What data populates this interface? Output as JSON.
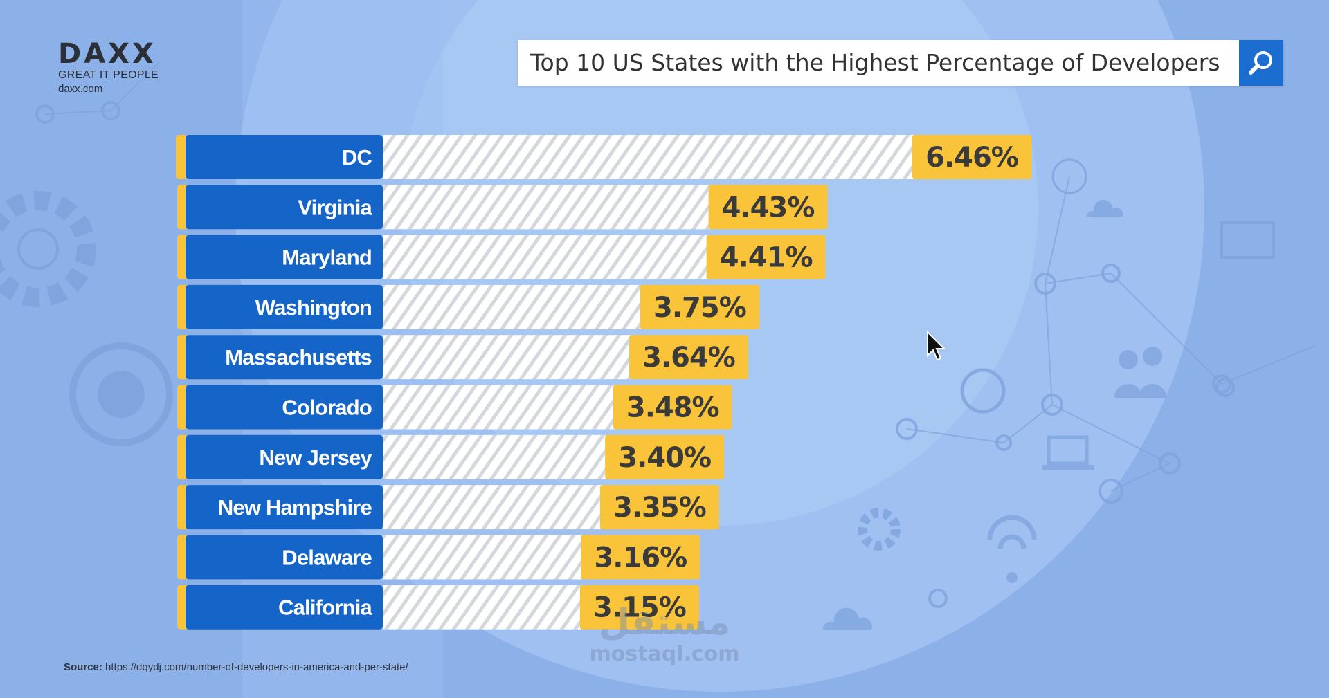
{
  "brand": {
    "logo_text": "DAXX",
    "tagline": "GREAT IT PEOPLE",
    "site": "daxx.com"
  },
  "search": {
    "query": "Top 10 US States with the Highest Percentage of Developers",
    "button_icon": "search-icon"
  },
  "chart_data": {
    "type": "bar",
    "orientation": "horizontal",
    "categories": [
      "DC",
      "Virginia",
      "Maryland",
      "Washington",
      "Massachusetts",
      "Colorado",
      "New Jersey",
      "New Hampshire",
      "Delaware",
      "California"
    ],
    "values": [
      6.46,
      4.43,
      4.41,
      3.75,
      3.64,
      3.48,
      3.4,
      3.35,
      3.16,
      3.15
    ],
    "value_labels": [
      "6.46%",
      "4.43%",
      "4.41%",
      "3.75%",
      "3.64%",
      "3.48%",
      "3.40%",
      "3.35%",
      "3.16%",
      "3.15%"
    ],
    "title": "Top 10 US States with the Highest Percentage of Developers",
    "grid": false,
    "legend": "none",
    "colors": {
      "label_bg": "#1565c8",
      "value_bg": "#f9c33a",
      "value_text": "#3a3a3a",
      "bar_fill": "#ffffff",
      "stripe": "#d4d7dc"
    }
  },
  "source": {
    "label": "Source:",
    "url": "https://dqydj.com/number-of-developers-in-america-and-per-state/"
  },
  "watermark": {
    "arabic": "مستقل",
    "latin": "mostaql.com"
  }
}
